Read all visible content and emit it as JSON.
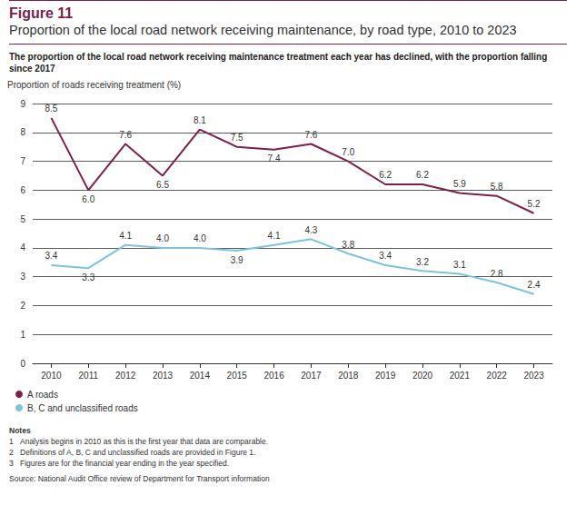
{
  "chart_data": {
    "type": "line",
    "title": "Figure 11",
    "subtitle": "Proportion of the local road network receiving maintenance, by road type, 2010 to 2023",
    "headline": "The proportion of the local road network receiving maintenance treatment each year has declined, with the proportion falling since 2017",
    "y_label": "Proportion of roads receiving treatment (%)",
    "categories": [
      "2010",
      "2011",
      "2012",
      "2013",
      "2014",
      "2015",
      "2016",
      "2017",
      "2018",
      "2019",
      "2020",
      "2021",
      "2022",
      "2023"
    ],
    "series": [
      {
        "name": "A roads",
        "color": "#7b1f4b",
        "values": [
          8.5,
          6.0,
          7.6,
          6.5,
          8.1,
          7.5,
          7.4,
          7.6,
          7.0,
          6.2,
          6.2,
          5.9,
          5.8,
          5.2
        ],
        "value_labels": [
          "8.5",
          "6.0",
          "7.6",
          "6.5",
          "8.1",
          "7.5",
          "7.4",
          "7.6",
          "7.0",
          "6.2",
          "6.2",
          "5.9",
          "5.8",
          "5.2"
        ]
      },
      {
        "name": "B, C and unclassified roads",
        "color": "#7cc3e0",
        "values": [
          3.4,
          3.3,
          4.1,
          4.0,
          4.0,
          3.9,
          4.1,
          4.3,
          3.8,
          3.4,
          3.2,
          3.1,
          2.8,
          2.4
        ],
        "value_labels": [
          "3.4",
          "3.3",
          "4.1",
          "4.0",
          "4.0",
          "3.9",
          "4.1",
          "4.3",
          "3.8",
          "3.4",
          "3.2",
          "3.1",
          "2.8",
          "2.4"
        ]
      }
    ],
    "ylim": [
      0,
      9
    ],
    "yticks": [
      0,
      1,
      2,
      3,
      4,
      5,
      6,
      7,
      8,
      9
    ],
    "grid": true,
    "legend": "bottom-left",
    "data_labels": true,
    "marker": "none",
    "line_style": "solid",
    "notes_title": "Notes",
    "notes": [
      {
        "number": 1,
        "text": "Analysis begins in 2010 as this is the first year that data are comparable."
      },
      {
        "number": 2,
        "text": "Definitions of A, B, C and unclassified roads are provided in Figure 1."
      },
      {
        "number": 3,
        "text": "Figures are for the financial year ending in the year specified."
      }
    ],
    "source": "Source: National Audit Office review of Department for Transport information"
  }
}
